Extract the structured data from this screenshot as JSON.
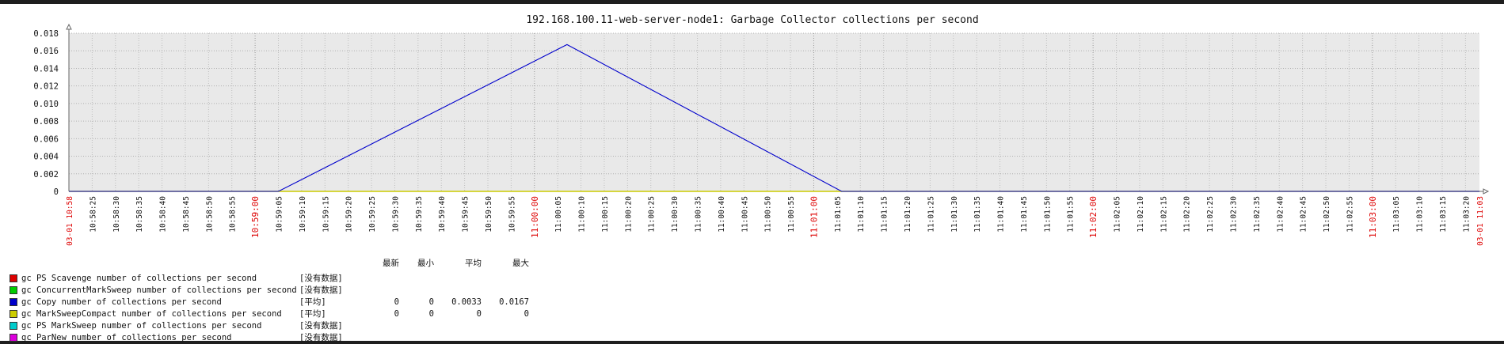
{
  "chart_data": {
    "type": "line",
    "title": "192.168.100.11-web-server-node1: Garbage Collector collections per second",
    "xlabel": "",
    "ylabel": "",
    "ylim": [
      0,
      0.018
    ],
    "y_ticks": [
      "0.018",
      "0.016",
      "0.014",
      "0.012",
      "0.010",
      "0.008",
      "0.006",
      "0.004",
      "0.002",
      "0"
    ],
    "x_start_label": "03-01 10:58",
    "x_end_label": "03-01 11:03",
    "x_ticks": [
      "10:58:25",
      "10:58:30",
      "10:58:35",
      "10:58:40",
      "10:58:45",
      "10:58:50",
      "10:58:55",
      "10:59:00",
      "10:59:05",
      "10:59:10",
      "10:59:15",
      "10:59:20",
      "10:59:25",
      "10:59:30",
      "10:59:35",
      "10:59:40",
      "10:59:45",
      "10:59:50",
      "10:59:55",
      "11:00:00",
      "11:00:05",
      "11:00:10",
      "11:00:15",
      "11:00:20",
      "11:00:25",
      "11:00:30",
      "11:00:35",
      "11:00:40",
      "11:00:45",
      "11:00:50",
      "11:00:55",
      "11:01:00",
      "11:01:05",
      "11:01:10",
      "11:01:15",
      "11:01:20",
      "11:01:25",
      "11:01:30",
      "11:01:35",
      "11:01:40",
      "11:01:45",
      "11:01:50",
      "11:01:55",
      "11:02:00",
      "11:02:05",
      "11:02:10",
      "11:02:15",
      "11:02:20",
      "11:02:25",
      "11:02:30",
      "11:02:35",
      "11:02:40",
      "11:02:45",
      "11:02:50",
      "11:02:55",
      "11:03:00",
      "11:03:05",
      "11:03:10",
      "11:03:15",
      "11:03:20"
    ],
    "major_ticks": [
      "10:59:00",
      "11:00:00",
      "11:01:00",
      "11:02:00",
      "11:03:00"
    ],
    "grid": true,
    "series": [
      {
        "name": "gc Copy number of collections per second",
        "color": "#0000cc",
        "x": [
          "10:58:20",
          "10:59:05",
          "11:00:07",
          "11:01:06",
          "11:03:23"
        ],
        "values": [
          0,
          0,
          0.0167,
          0,
          0
        ]
      },
      {
        "name": "gc MarkSweepCompact number of collections per second",
        "color": "#cccc00",
        "x": [
          "10:58:20",
          "11:03:23"
        ],
        "values": [
          0,
          0
        ]
      }
    ]
  },
  "legend": {
    "headers": [
      "最新",
      "最小",
      "平均",
      "最大"
    ],
    "rows": [
      {
        "color": "#dd0000",
        "name": "gc PS Scavenge number of collections per second",
        "func": "[没有数据]",
        "last": "",
        "min": "",
        "avg": "",
        "max": ""
      },
      {
        "color": "#00cc00",
        "name": "gc ConcurrentMarkSweep number of collections per second",
        "func": "[没有数据]",
        "last": "",
        "min": "",
        "avg": "",
        "max": ""
      },
      {
        "color": "#0000cc",
        "name": "gc Copy number of collections per second",
        "func": "[平均]",
        "last": "0",
        "min": "0",
        "avg": "0.0033",
        "max": "0.0167"
      },
      {
        "color": "#cccc00",
        "name": "gc MarkSweepCompact number of collections per second",
        "func": "[平均]",
        "last": "0",
        "min": "0",
        "avg": "0",
        "max": "0"
      },
      {
        "color": "#00cccc",
        "name": "gc PS MarkSweep number of collections per second",
        "func": "[没有数据]",
        "last": "",
        "min": "",
        "avg": "",
        "max": ""
      },
      {
        "color": "#dd00dd",
        "name": "gc ParNew number of collections per second",
        "func": "[没有数据]",
        "last": "",
        "min": "",
        "avg": "",
        "max": ""
      }
    ]
  }
}
